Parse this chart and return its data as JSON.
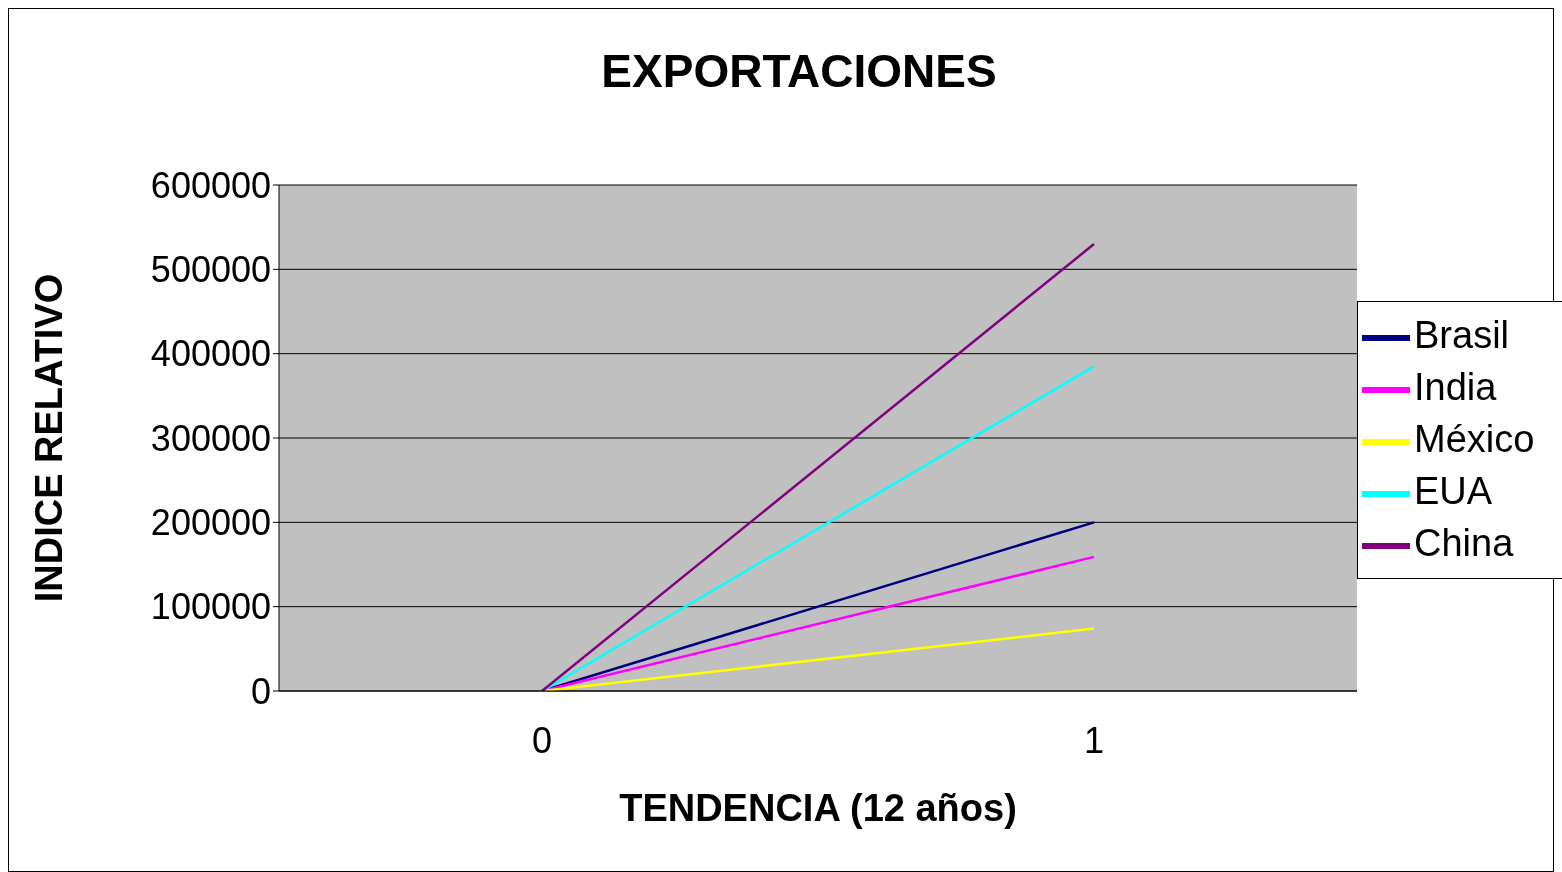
{
  "chart_data": {
    "type": "line",
    "title": "EXPORTACIONES",
    "xlabel": "TENDENCIA (12 años)",
    "ylabel": "INDICE RELATIVO",
    "categories": [
      "0",
      "1"
    ],
    "series": [
      {
        "name": "Brasil",
        "color": "#000080",
        "values": [
          0,
          200000
        ]
      },
      {
        "name": "India",
        "color": "#ff00ff",
        "values": [
          0,
          159000
        ]
      },
      {
        "name": "México",
        "color": "#ffff00",
        "values": [
          0,
          74000
        ]
      },
      {
        "name": "EUA",
        "color": "#00ffff",
        "values": [
          0,
          385000
        ]
      },
      {
        "name": "China",
        "color": "#800080",
        "values": [
          0,
          530000
        ]
      }
    ],
    "ylim": [
      0,
      600000
    ],
    "yticks": [
      0,
      100000,
      200000,
      300000,
      400000,
      500000,
      600000
    ],
    "grid": "y",
    "legend": "right"
  }
}
